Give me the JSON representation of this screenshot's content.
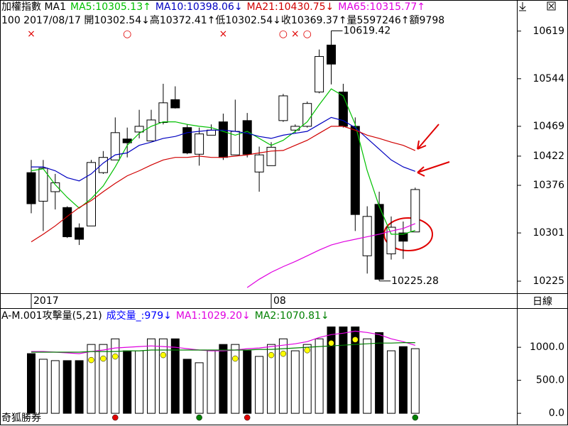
{
  "header": {
    "title": "加權指數 MA1",
    "info": "100 2017/08/17 開10302.54↓高10372.41↑低10302.54↓收10369.37↑量5597246↑額9798"
  },
  "footer": "奇狐勝券",
  "period_label": "日線",
  "chart_data": [
    {
      "type": "candlestick",
      "categories": [
        "2017",
        null,
        null,
        null,
        null,
        null,
        null,
        null,
        null,
        null,
        null,
        null,
        null,
        null,
        null,
        null,
        null,
        null,
        null,
        null,
        "08",
        null,
        null,
        null,
        null,
        null,
        null,
        null,
        null,
        null,
        null,
        null,
        null
      ],
      "open": [
        10396,
        10351,
        10366,
        10341,
        10309,
        10312,
        10396,
        10416,
        10449,
        10460,
        10446,
        10475,
        10511,
        10467,
        10425,
        10455,
        10476,
        10424,
        10478,
        10397,
        10407,
        10478,
        10463,
        10469,
        10523,
        10597,
        10523,
        10469,
        10265,
        10346,
        10268,
        10301,
        10302.54
      ],
      "high": [
        10416,
        10416,
        10394,
        10343,
        10316,
        10416,
        10430,
        10483,
        10467,
        10495,
        10495,
        10536,
        10532,
        10472,
        10467,
        10472,
        10489,
        10511,
        10490,
        10437,
        10444,
        10520,
        10472,
        10508,
        10590,
        10619.42,
        10536,
        10483,
        10343,
        10366,
        10327,
        10319,
        10372.41
      ],
      "low": [
        10332,
        10304,
        10338,
        10293,
        10282,
        10312,
        10394,
        10416,
        10420,
        10450,
        10446,
        10472,
        10497,
        10425,
        10407,
        10455,
        10416,
        10424,
        10420,
        10366,
        10407,
        10476,
        10458,
        10467,
        10521,
        10535,
        10467,
        10304,
        10237,
        10225.28,
        10259,
        10260,
        10302.54
      ],
      "close": [
        10347,
        10403,
        10380,
        10295,
        10291,
        10412,
        10420,
        10459,
        10443,
        10469,
        10479,
        10506,
        10498,
        10427,
        10457,
        10463,
        10420,
        10461,
        10425,
        10424,
        10436,
        10517,
        10469,
        10505,
        10579,
        10567,
        10469,
        10330,
        10327,
        10228,
        10310,
        10288,
        10369.37
      ],
      "up_color": "#ffffff",
      "down_color": "#000000",
      "max_label": "10619.42",
      "min_label": "10225.28",
      "top_signals": [
        "×",
        null,
        null,
        null,
        null,
        null,
        null,
        null,
        "○",
        null,
        null,
        null,
        null,
        null,
        null,
        null,
        "×",
        null,
        null,
        null,
        null,
        "○",
        "×",
        "○",
        null,
        null,
        null,
        null,
        null,
        null,
        null,
        null,
        null
      ],
      "signal_color": "#e00000",
      "series": [
        {
          "name": "MA5:10305.13↑",
          "color": "#00c000",
          "values": [
            10399,
            10402,
            10377,
            10357,
            10340,
            10355,
            10375,
            10405,
            10439,
            10458,
            10469,
            10476,
            10476,
            10472,
            10469,
            10467,
            10461,
            10455,
            10461,
            10450,
            10439,
            10447,
            10461,
            10476,
            10503,
            10528,
            10517,
            10472,
            10399,
            10343,
            10299,
            10299,
            10305.13
          ]
        },
        {
          "name": "MA10:10398.06↓",
          "color": "#0000c0",
          "values": [
            10405,
            10405,
            10399,
            10388,
            10383,
            10394,
            10411,
            10424,
            10427,
            10439,
            10444,
            10450,
            10453,
            10459,
            10461,
            10463,
            10463,
            10461,
            10458,
            10453,
            10450,
            10455,
            10458,
            10461,
            10472,
            10483,
            10478,
            10467,
            10450,
            10433,
            10416,
            10405,
            10398.06
          ]
        },
        {
          "name": "MA21:10430.75↓",
          "color": "#d00000",
          "values": [
            10287,
            10299,
            10312,
            10327,
            10341,
            10352,
            10366,
            10379,
            10391,
            10399,
            10408,
            10416,
            10420,
            10420,
            10422,
            10420,
            10420,
            10422,
            10424,
            10427,
            10430,
            10431,
            10439,
            10447,
            10458,
            10469,
            10469,
            10463,
            10455,
            10450,
            10444,
            10439,
            10430.75
          ]
        },
        {
          "name": "MA65:10315.77↑",
          "color": "#e000e0",
          "values": [
            null,
            null,
            null,
            null,
            null,
            null,
            null,
            null,
            null,
            null,
            null,
            null,
            null,
            null,
            null,
            null,
            null,
            null,
            10215,
            10228,
            10239,
            10248,
            10256,
            10265,
            10274,
            10282,
            10287,
            10291,
            10295,
            10299,
            10304,
            10308,
            10315.77
          ]
        }
      ],
      "ylim": [
        10206,
        10668
      ],
      "yticks": [
        10619,
        10544,
        10469,
        10422,
        10376,
        10301,
        10225
      ]
    },
    {
      "type": "bar",
      "title": "A-M.001攻擊量(5,21)",
      "series": [
        {
          "name": "成交量_:979↓",
          "color": "#0000ff",
          "values": [
            904,
            819,
            798,
            798,
            798,
            1043,
            1043,
            1128,
            947,
            947,
            1128,
            1128,
            1128,
            819,
            766,
            947,
            1043,
            1043,
            947,
            862,
            1043,
            1128,
            947,
            1043,
            1128,
            1309,
            1309,
            1309,
            1128,
            1223,
            947,
            1010,
            979
          ]
        },
        {
          "name": "MA1:1029.20↓",
          "color": "#e000e0",
          "type": "line",
          "values": [
            936,
            936,
            926,
            915,
            904,
            936,
            958,
            990,
            1000,
            1011,
            1021,
            1011,
            1000,
            979,
            958,
            947,
            947,
            958,
            979,
            990,
            1011,
            1032,
            1053,
            1085,
            1149,
            1192,
            1213,
            1245,
            1224,
            1192,
            1128,
            1085,
            1029.2
          ]
        },
        {
          "name": "MA2:1070.81↓",
          "color": "#008000",
          "type": "line",
          "values": [
            926,
            926,
            926,
            926,
            926,
            936,
            936,
            936,
            947,
            947,
            958,
            958,
            958,
            958,
            958,
            958,
            958,
            958,
            958,
            968,
            968,
            979,
            990,
            1000,
            1011,
            1021,
            1032,
            1043,
            1053,
            1064,
            1064,
            1070,
            1070.81
          ]
        }
      ],
      "bar_dots": [
        null,
        null,
        null,
        null,
        null,
        "#ffff00",
        "#ffff00",
        "#ffff00",
        null,
        null,
        null,
        "#ffff00",
        null,
        null,
        null,
        null,
        null,
        "#ffff00",
        null,
        null,
        "#ffff00",
        "#ffff00",
        null,
        "#ffff00",
        null,
        "#ffff00",
        null,
        "#ffff00",
        null,
        null,
        null,
        null,
        null
      ],
      "base_dots": [
        null,
        null,
        null,
        null,
        null,
        null,
        null,
        "#e00000",
        null,
        null,
        null,
        null,
        null,
        null,
        "#008000",
        null,
        null,
        null,
        "#e00000",
        null,
        null,
        null,
        null,
        null,
        null,
        null,
        null,
        null,
        null,
        null,
        null,
        null,
        "#008000"
      ],
      "ylim": [
        -160,
        1550
      ],
      "yticks": [
        {
          "value": 1000,
          "label": "1000.0"
        },
        {
          "value": 500,
          "label": "500.0"
        },
        {
          "value": 0,
          "label": "0.0"
        }
      ]
    }
  ]
}
